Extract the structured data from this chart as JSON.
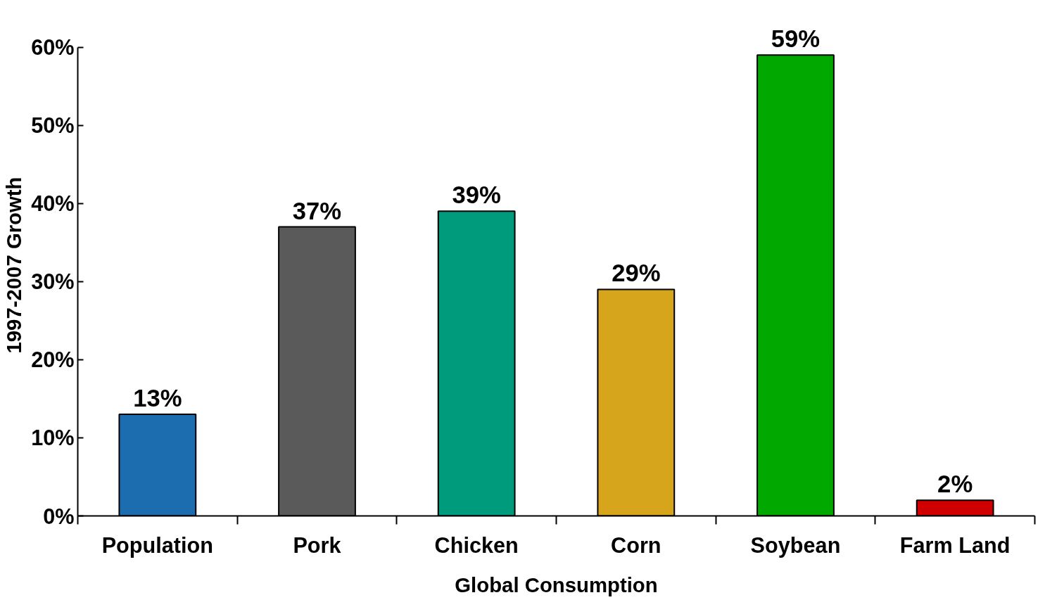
{
  "chart_data": {
    "type": "bar",
    "ylabel": "1997-2007 Growth",
    "xlabel": "Global Consumption",
    "categories": [
      "Population",
      "Pork",
      "Chicken",
      "Corn",
      "Soybean",
      "Farm Land"
    ],
    "values": [
      13,
      37,
      39,
      29,
      59,
      2
    ],
    "colors": [
      "#1c6db0",
      "#5a5a5a",
      "#009b7c",
      "#d6a51c",
      "#00a800",
      "#d00000"
    ],
    "ylim": [
      0,
      60
    ],
    "yticks": [
      {
        "value": 0,
        "label": "0%"
      },
      {
        "value": 10,
        "label": "10%"
      },
      {
        "value": 20,
        "label": "20%"
      },
      {
        "value": 30,
        "label": "30%"
      },
      {
        "value": 40,
        "label": "40%"
      },
      {
        "value": 50,
        "label": "50%"
      },
      {
        "value": 60,
        "label": "60%"
      }
    ],
    "value_labels": [
      "13%",
      "37%",
      "39%",
      "29%",
      "59%",
      "2%"
    ],
    "grid": false
  }
}
